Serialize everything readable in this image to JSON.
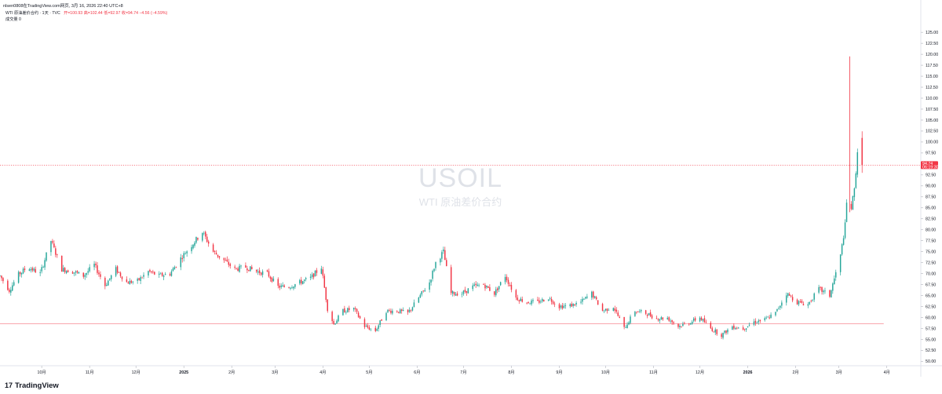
{
  "header": {
    "text": "nlsen0808在TradingView.com网页, 3月 16, 2026 22:40 UTC+8"
  },
  "legend": {
    "symbol_desc": "WTI 原油差价合约 · 1天 · TVC",
    "ohlc": "开=100.93 高=102.44 低=92.97 收=94.74 −4.56 (−4.59%)",
    "volume": "成交量  0"
  },
  "volume_line": "成交量  0",
  "watermark": {
    "symbol": "USOIL",
    "description": "WTI 原油差价合约"
  },
  "brand": {
    "logo": "17",
    "name": "TradingView"
  },
  "price_tag": {
    "price": "94.74",
    "countdown": "06:19:30"
  },
  "colors": {
    "up": "#26a69a",
    "down": "#f23645",
    "price_line": "#f23645",
    "grid_axis": "#e0e3eb"
  },
  "chart_data": {
    "type": "candlestick",
    "title": "",
    "xlabel": "",
    "ylabel": "",
    "ylim": [
      49,
      127
    ],
    "y_ticks": [
      "50.00",
      "52.50",
      "55.00",
      "57.50",
      "60.00",
      "62.50",
      "65.00",
      "67.50",
      "70.00",
      "72.50",
      "75.00",
      "77.50",
      "80.00",
      "82.50",
      "85.00",
      "87.50",
      "90.00",
      "92.50",
      "95.00",
      "97.50",
      "100.00",
      "102.50",
      "105.00",
      "107.50",
      "110.00",
      "112.50",
      "115.00",
      "117.50",
      "120.00",
      "122.50",
      "125.00"
    ],
    "x_ticks": [
      {
        "label": "10月",
        "date": "2024-10-01",
        "bold": false
      },
      {
        "label": "11月",
        "date": "2024-11-01",
        "bold": false
      },
      {
        "label": "12月",
        "date": "2024-12-01",
        "bold": false
      },
      {
        "label": "2025",
        "date": "2025-01-01",
        "bold": true
      },
      {
        "label": "2月",
        "date": "2025-02-01",
        "bold": false
      },
      {
        "label": "3月",
        "date": "2025-03-01",
        "bold": false
      },
      {
        "label": "4月",
        "date": "2025-04-01",
        "bold": false
      },
      {
        "label": "5月",
        "date": "2025-05-01",
        "bold": false
      },
      {
        "label": "6月",
        "date": "2025-06-01",
        "bold": false
      },
      {
        "label": "7月",
        "date": "2025-07-01",
        "bold": false
      },
      {
        "label": "8月",
        "date": "2025-08-01",
        "bold": false
      },
      {
        "label": "9月",
        "date": "2025-09-01",
        "bold": false
      },
      {
        "label": "10月",
        "date": "2025-10-01",
        "bold": false
      },
      {
        "label": "11月",
        "date": "2025-11-01",
        "bold": false
      },
      {
        "label": "12月",
        "date": "2025-12-01",
        "bold": false
      },
      {
        "label": "2026",
        "date": "2026-01-01",
        "bold": true
      },
      {
        "label": "2月",
        "date": "2026-02-01",
        "bold": false
      },
      {
        "label": "3月",
        "date": "2026-03-01",
        "bold": false
      },
      {
        "label": "4月",
        "date": "2026-04-01",
        "bold": false
      }
    ],
    "x_range": [
      "2024-09-04",
      "2026-04-23"
    ],
    "last_price": 94.74,
    "reference_line": {
      "value": 58.6,
      "start": "2024-09-04",
      "end": "2026-03-30"
    },
    "series": [
      {
        "d": "2024-09-04",
        "c": 69.5
      },
      {
        "d": "2024-09-10",
        "c": 66.2
      },
      {
        "d": "2024-09-16",
        "c": 69.8
      },
      {
        "d": "2024-09-22",
        "c": 71.5
      },
      {
        "d": "2024-09-30",
        "c": 70.0
      },
      {
        "d": "2024-10-07",
        "c": 77.5
      },
      {
        "d": "2024-10-14",
        "c": 71.0
      },
      {
        "d": "2024-10-21",
        "c": 70.5
      },
      {
        "d": "2024-10-28",
        "c": 69.5
      },
      {
        "d": "2024-11-04",
        "c": 72.0
      },
      {
        "d": "2024-11-11",
        "c": 67.3
      },
      {
        "d": "2024-11-18",
        "c": 71.0
      },
      {
        "d": "2024-11-25",
        "c": 68.0
      },
      {
        "d": "2024-12-02",
        "c": 68.3
      },
      {
        "d": "2024-12-09",
        "c": 70.5
      },
      {
        "d": "2024-12-16",
        "c": 69.5
      },
      {
        "d": "2024-12-23",
        "c": 70.0
      },
      {
        "d": "2024-12-30",
        "c": 73.5
      },
      {
        "d": "2025-01-06",
        "c": 76.5
      },
      {
        "d": "2025-01-13",
        "c": 79.5
      },
      {
        "d": "2025-01-20",
        "c": 75.0
      },
      {
        "d": "2025-01-27",
        "c": 73.0
      },
      {
        "d": "2025-02-03",
        "c": 71.0
      },
      {
        "d": "2025-02-10",
        "c": 71.5
      },
      {
        "d": "2025-02-17",
        "c": 70.5
      },
      {
        "d": "2025-02-24",
        "c": 70.0
      },
      {
        "d": "2025-03-03",
        "c": 67.0
      },
      {
        "d": "2025-03-10",
        "c": 67.0
      },
      {
        "d": "2025-03-17",
        "c": 68.0
      },
      {
        "d": "2025-03-24",
        "c": 69.0
      },
      {
        "d": "2025-03-31",
        "c": 71.5
      },
      {
        "d": "2025-04-04",
        "c": 62.0
      },
      {
        "d": "2025-04-08",
        "c": 58.5
      },
      {
        "d": "2025-04-14",
        "c": 61.5
      },
      {
        "d": "2025-04-21",
        "c": 62.0
      },
      {
        "d": "2025-04-28",
        "c": 58.0
      },
      {
        "d": "2025-05-05",
        "c": 57.0
      },
      {
        "d": "2025-05-12",
        "c": 61.5
      },
      {
        "d": "2025-05-19",
        "c": 61.5
      },
      {
        "d": "2025-05-26",
        "c": 61.0
      },
      {
        "d": "2025-06-02",
        "c": 64.5
      },
      {
        "d": "2025-06-09",
        "c": 68.0
      },
      {
        "d": "2025-06-13",
        "c": 72.5
      },
      {
        "d": "2025-06-18",
        "c": 75.0
      },
      {
        "d": "2025-06-23",
        "c": 65.5
      },
      {
        "d": "2025-06-30",
        "c": 65.5
      },
      {
        "d": "2025-07-07",
        "c": 67.0
      },
      {
        "d": "2025-07-14",
        "c": 67.5
      },
      {
        "d": "2025-07-21",
        "c": 65.5
      },
      {
        "d": "2025-07-28",
        "c": 69.5
      },
      {
        "d": "2025-08-04",
        "c": 64.5
      },
      {
        "d": "2025-08-11",
        "c": 63.5
      },
      {
        "d": "2025-08-18",
        "c": 63.5
      },
      {
        "d": "2025-08-25",
        "c": 64.5
      },
      {
        "d": "2025-09-01",
        "c": 62.5
      },
      {
        "d": "2025-09-08",
        "c": 62.7
      },
      {
        "d": "2025-09-15",
        "c": 63.5
      },
      {
        "d": "2025-09-22",
        "c": 65.5
      },
      {
        "d": "2025-09-29",
        "c": 61.5
      },
      {
        "d": "2025-10-06",
        "c": 62.5
      },
      {
        "d": "2025-10-13",
        "c": 57.5
      },
      {
        "d": "2025-10-20",
        "c": 61.5
      },
      {
        "d": "2025-10-27",
        "c": 61.0
      },
      {
        "d": "2025-11-03",
        "c": 59.8
      },
      {
        "d": "2025-11-10",
        "c": 59.9
      },
      {
        "d": "2025-11-17",
        "c": 58.0
      },
      {
        "d": "2025-11-24",
        "c": 58.8
      },
      {
        "d": "2025-12-01",
        "c": 60.0
      },
      {
        "d": "2025-12-08",
        "c": 57.5
      },
      {
        "d": "2025-12-15",
        "c": 56.0
      },
      {
        "d": "2025-12-22",
        "c": 58.0
      },
      {
        "d": "2025-12-29",
        "c": 57.5
      },
      {
        "d": "2026-01-05",
        "c": 59.0
      },
      {
        "d": "2026-01-12",
        "c": 59.5
      },
      {
        "d": "2026-01-19",
        "c": 61.0
      },
      {
        "d": "2026-01-26",
        "c": 65.5
      },
      {
        "d": "2026-02-02",
        "c": 63.5
      },
      {
        "d": "2026-02-09",
        "c": 63.0
      },
      {
        "d": "2026-02-16",
        "c": 66.5
      },
      {
        "d": "2026-02-23",
        "c": 65.0
      },
      {
        "d": "2026-03-02",
        "c": 74.0
      },
      {
        "d": "2026-03-05",
        "c": 81.0
      },
      {
        "d": "2026-03-07",
        "c": 91.0
      },
      {
        "d": "2026-03-09",
        "c": 85.0
      },
      {
        "d": "2026-03-11",
        "c": 89.0
      },
      {
        "d": "2026-03-13",
        "c": 98.0
      },
      {
        "d": "2026-03-16",
        "c": 94.74
      }
    ],
    "spikes": [
      {
        "d": "2026-03-08",
        "high": 119.5,
        "low": 84.0
      }
    ]
  }
}
